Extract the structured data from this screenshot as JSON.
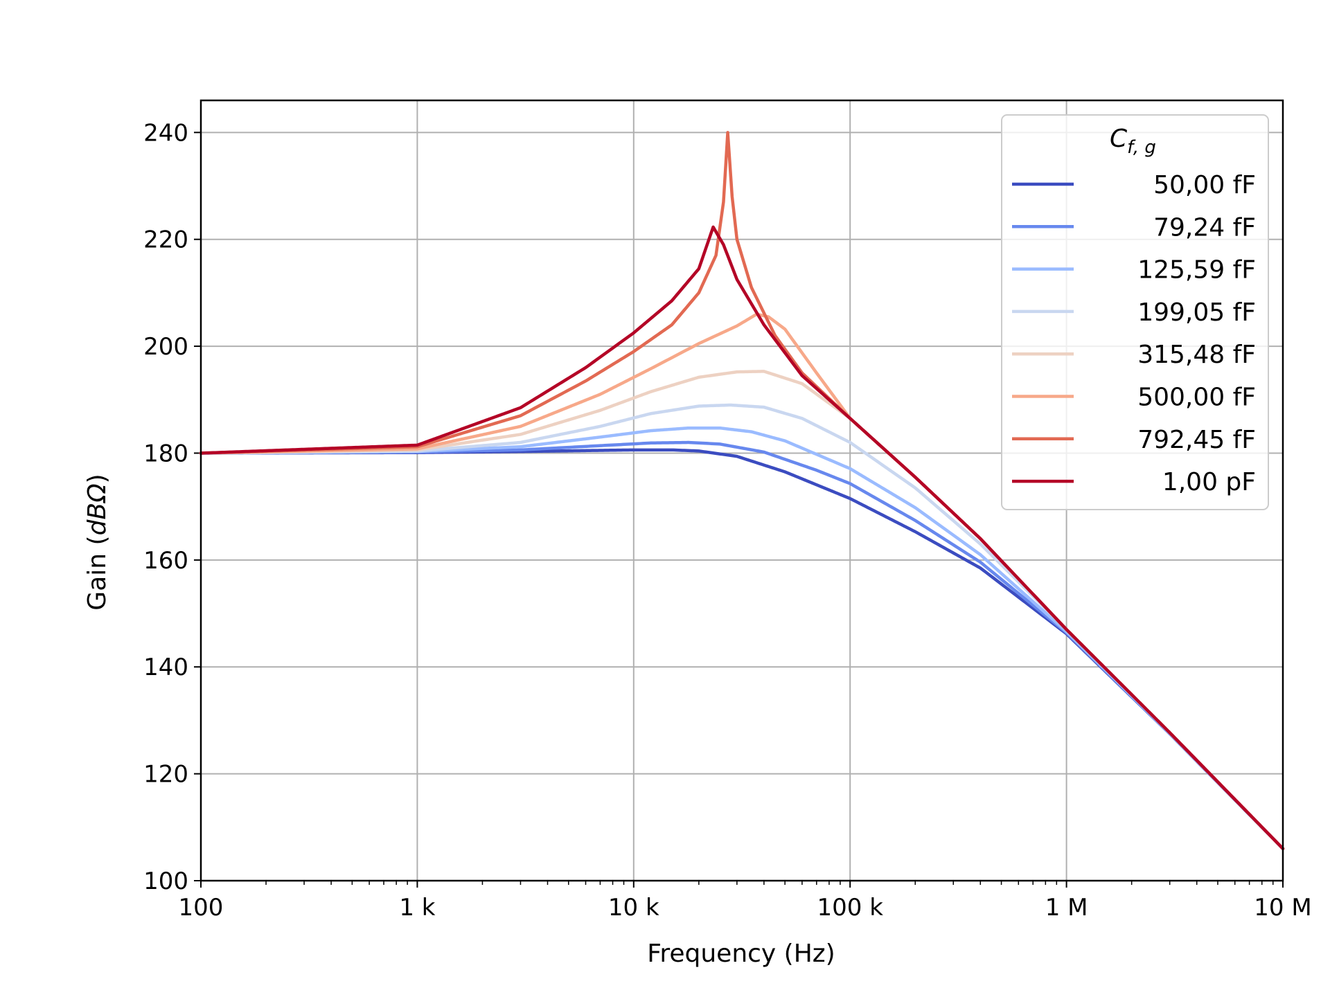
{
  "chart_data": {
    "type": "line",
    "xlabel": "Frequency (Hz)",
    "ylabel_prefix": "Gain (",
    "ylabel_unit": "dBΩ",
    "ylabel_suffix": ")",
    "x_scale": "log",
    "xlim": [
      100,
      10000000
    ],
    "ylim": [
      100,
      246
    ],
    "x_ticks": [
      {
        "value": 100,
        "label": "100"
      },
      {
        "value": 1000,
        "label": "1 k"
      },
      {
        "value": 10000,
        "label": "10 k"
      },
      {
        "value": 100000,
        "label": "100 k"
      },
      {
        "value": 1000000,
        "label": "1 M"
      },
      {
        "value": 10000000,
        "label": "10 M"
      }
    ],
    "y_ticks": [
      {
        "value": 100,
        "label": "100"
      },
      {
        "value": 120,
        "label": "120"
      },
      {
        "value": 140,
        "label": "140"
      },
      {
        "value": 160,
        "label": "160"
      },
      {
        "value": 180,
        "label": "180"
      },
      {
        "value": 200,
        "label": "200"
      },
      {
        "value": 220,
        "label": "220"
      },
      {
        "value": 240,
        "label": "240"
      }
    ],
    "grid": true,
    "legend_position": "top-right",
    "legend_title_main": "C",
    "legend_title_sub": "f, g",
    "series": [
      {
        "name": "50,00 fF",
        "color": "#3b4cc0",
        "points": [
          [
            100,
            180
          ],
          [
            1000,
            180.1
          ],
          [
            3000,
            180.3
          ],
          [
            10000,
            180.6
          ],
          [
            15000,
            180.6
          ],
          [
            20000,
            180.4
          ],
          [
            30000,
            179.4
          ],
          [
            50000,
            176.5
          ],
          [
            100000,
            171.5
          ],
          [
            200000,
            165.3
          ],
          [
            400000,
            158.5
          ],
          [
            1000000,
            146.2
          ],
          [
            3000000,
            127.5
          ],
          [
            10000000,
            106
          ]
        ]
      },
      {
        "name": "79,24 fF",
        "color": "#6788ee",
        "points": [
          [
            100,
            180
          ],
          [
            1000,
            180.2
          ],
          [
            3000,
            180.6
          ],
          [
            7000,
            181.4
          ],
          [
            12000,
            181.9
          ],
          [
            18000,
            182.0
          ],
          [
            25000,
            181.7
          ],
          [
            40000,
            180.2
          ],
          [
            70000,
            176.8
          ],
          [
            100000,
            174.3
          ],
          [
            200000,
            167.4
          ],
          [
            400000,
            159.6
          ],
          [
            1000000,
            146.4
          ],
          [
            3000000,
            127.5
          ],
          [
            10000000,
            106
          ]
        ]
      },
      {
        "name": "125,59 fF",
        "color": "#9abbff",
        "points": [
          [
            100,
            180
          ],
          [
            1000,
            180.3
          ],
          [
            3000,
            181.2
          ],
          [
            7000,
            183.0
          ],
          [
            12000,
            184.2
          ],
          [
            18000,
            184.7
          ],
          [
            25000,
            184.7
          ],
          [
            35000,
            184.0
          ],
          [
            50000,
            182.3
          ],
          [
            100000,
            177.1
          ],
          [
            200000,
            169.8
          ],
          [
            400000,
            161.0
          ],
          [
            1000000,
            146.6
          ],
          [
            3000000,
            127.6
          ],
          [
            10000000,
            106
          ]
        ]
      },
      {
        "name": "199,05 fF",
        "color": "#c9d7f0",
        "points": [
          [
            100,
            180
          ],
          [
            1000,
            180.4
          ],
          [
            3000,
            182.0
          ],
          [
            7000,
            185.0
          ],
          [
            12000,
            187.4
          ],
          [
            20000,
            188.8
          ],
          [
            28000,
            189.0
          ],
          [
            40000,
            188.6
          ],
          [
            60000,
            186.5
          ],
          [
            100000,
            182.0
          ],
          [
            200000,
            173.5
          ],
          [
            400000,
            163.0
          ],
          [
            1000000,
            147
          ],
          [
            3000000,
            127.7
          ],
          [
            10000000,
            106
          ]
        ]
      },
      {
        "name": "315,48 fF",
        "color": "#edd1c2",
        "points": [
          [
            100,
            180
          ],
          [
            1000,
            180.6
          ],
          [
            3000,
            183.5
          ],
          [
            7000,
            188.0
          ],
          [
            12000,
            191.5
          ],
          [
            20000,
            194.2
          ],
          [
            30000,
            195.2
          ],
          [
            40000,
            195.3
          ],
          [
            60000,
            193.0
          ],
          [
            100000,
            186.5
          ],
          [
            200000,
            175.5
          ],
          [
            400000,
            164.0
          ],
          [
            1000000,
            147
          ],
          [
            3000000,
            127.7
          ],
          [
            10000000,
            106
          ]
        ]
      },
      {
        "name": "500,00 fF",
        "color": "#f7a889",
        "points": [
          [
            100,
            180
          ],
          [
            1000,
            180.8
          ],
          [
            3000,
            185.0
          ],
          [
            7000,
            191.0
          ],
          [
            12000,
            195.8
          ],
          [
            20000,
            200.5
          ],
          [
            30000,
            203.8
          ],
          [
            37000,
            206.0
          ],
          [
            42000,
            205.5
          ],
          [
            50000,
            203.2
          ],
          [
            70000,
            195.0
          ],
          [
            100000,
            186.5
          ],
          [
            200000,
            175.5
          ],
          [
            400000,
            164.0
          ],
          [
            1000000,
            147
          ],
          [
            3000000,
            127.7
          ],
          [
            10000000,
            106
          ]
        ]
      },
      {
        "name": "792,45 fF",
        "color": "#e26952",
        "points": [
          [
            100,
            180
          ],
          [
            1000,
            181.2
          ],
          [
            3000,
            187.0
          ],
          [
            6000,
            193.5
          ],
          [
            10000,
            199.0
          ],
          [
            15000,
            204.0
          ],
          [
            20000,
            210.0
          ],
          [
            24000,
            217.0
          ],
          [
            26000,
            227.0
          ],
          [
            27200,
            240.0
          ],
          [
            28500,
            228.0
          ],
          [
            30000,
            220.0
          ],
          [
            35000,
            211.0
          ],
          [
            45000,
            202.0
          ],
          [
            60000,
            195.0
          ],
          [
            100000,
            186.5
          ],
          [
            200000,
            175.5
          ],
          [
            400000,
            164.0
          ],
          [
            1000000,
            147
          ],
          [
            3000000,
            127.7
          ],
          [
            10000000,
            106
          ]
        ]
      },
      {
        "name": "1,00 pF",
        "color": "#b40426",
        "points": [
          [
            100,
            180
          ],
          [
            1000,
            181.5
          ],
          [
            3000,
            188.5
          ],
          [
            6000,
            196.0
          ],
          [
            10000,
            202.5
          ],
          [
            15000,
            208.5
          ],
          [
            20000,
            214.5
          ],
          [
            23300,
            222.3
          ],
          [
            26000,
            219.0
          ],
          [
            30000,
            212.5
          ],
          [
            40000,
            204.0
          ],
          [
            60000,
            194.5
          ],
          [
            100000,
            186.5
          ],
          [
            200000,
            175.5
          ],
          [
            400000,
            164.0
          ],
          [
            1000000,
            147
          ],
          [
            3000000,
            127.7
          ],
          [
            10000000,
            106
          ]
        ]
      }
    ]
  }
}
